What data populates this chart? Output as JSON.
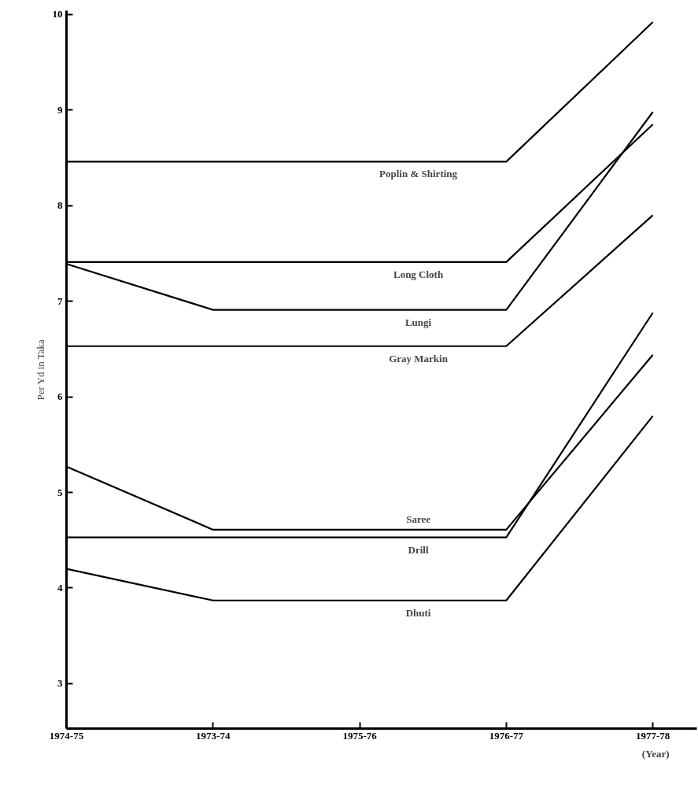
{
  "chart_data": {
    "type": "line",
    "ylabel": "Per Yd in Taka",
    "xlabel": "(Year)",
    "categories": [
      "1974-75",
      "1973-74",
      "1975-76",
      "1976-77",
      "1977-78"
    ],
    "series": [
      {
        "name": "Poplin & Shirting",
        "color": "#000000",
        "values": [
          8.46,
          8.46,
          8.46,
          8.46,
          9.92
        ]
      },
      {
        "name": "Long Cloth",
        "color": "#000000",
        "values": [
          7.41,
          7.41,
          7.41,
          7.41,
          8.85
        ]
      },
      {
        "name": "Lungi",
        "color": "#000000",
        "values": [
          7.39,
          6.91,
          6.91,
          6.91,
          8.98
        ]
      },
      {
        "name": "Gray Markin",
        "color": "#000000",
        "values": [
          6.53,
          6.53,
          6.53,
          6.53,
          7.9
        ]
      },
      {
        "name": "Saree",
        "color": "#000000",
        "values": [
          5.27,
          4.61,
          4.61,
          4.61,
          6.44
        ]
      },
      {
        "name": "Drill",
        "color": "#000000",
        "values": [
          4.53,
          4.53,
          4.53,
          4.53,
          6.88
        ]
      },
      {
        "name": "Dhuti",
        "color": "#000000",
        "values": [
          4.2,
          3.87,
          3.87,
          3.87,
          5.8
        ]
      }
    ],
    "ylim": [
      2.53,
      10.04
    ],
    "yticks": [
      3,
      4,
      5,
      6,
      7,
      8,
      9,
      10
    ],
    "grid": false,
    "marker": "none",
    "line_style": "solid"
  }
}
